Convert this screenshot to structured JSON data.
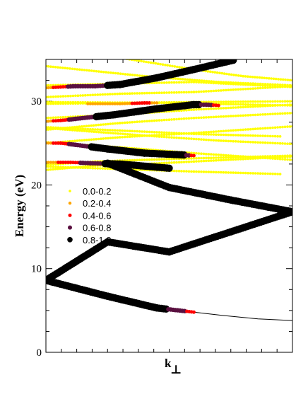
{
  "chart_data": {
    "type": "scatter",
    "title": "",
    "xlabel": "k",
    "xlabel_subscript": "⊥",
    "ylabel": "Energy (eV)",
    "xlim": [
      0,
      1
    ],
    "ylim": [
      0,
      35
    ],
    "y_ticks": [
      "0",
      "10",
      "20",
      "30"
    ],
    "y_tick_values": [
      0,
      10,
      20,
      30
    ],
    "y_minor_step": 2.5,
    "x_minor_step": 0.0625,
    "grid": false,
    "legend_position": "center-left",
    "weight_classes": [
      {
        "label": "0.0-0.2",
        "color": "#ffff00"
      },
      {
        "label": "0.2-0.4",
        "color": "#ffa500"
      },
      {
        "label": "0.4-0.6",
        "color": "#ff0000"
      },
      {
        "label": "0.6-0.8",
        "color": "#5a1040"
      },
      {
        "label": "0.8-1.0",
        "color": "#000000"
      }
    ],
    "series": [
      {
        "points": [
          [
            0,
            8.6,
            4
          ],
          [
            0.25,
            13.2,
            4
          ],
          [
            0.5,
            12.0,
            4
          ],
          [
            0.75,
            14.4,
            4
          ],
          [
            1,
            16.8,
            4
          ]
        ]
      },
      {
        "points": [
          [
            0,
            8.6,
            4
          ],
          [
            0.25,
            6.7,
            4
          ],
          [
            0.45,
            5.3,
            4
          ],
          [
            0.6,
            4.8,
            2
          ]
        ]
      },
      {
        "points": [
          [
            0.5,
            5.1,
            -1
          ],
          [
            0.6,
            4.8,
            -1
          ],
          [
            0.72,
            4.4,
            -1
          ],
          [
            0.86,
            4.0,
            -1
          ],
          [
            1.0,
            3.8,
            -1
          ]
        ]
      },
      {
        "points": [
          [
            0.0,
            8.6,
            4
          ],
          [
            0.25,
            6.7,
            4
          ],
          [
            0.45,
            5.3,
            4
          ]
        ]
      },
      {
        "points": [
          [
            0.25,
            22.6,
            4
          ],
          [
            0.5,
            19.7,
            4
          ],
          [
            0.75,
            18.2,
            4
          ],
          [
            1.0,
            16.8,
            4
          ]
        ]
      },
      {
        "points": [
          [
            0.0,
            22.7,
            1
          ],
          [
            0.1,
            22.7,
            2
          ],
          [
            0.18,
            22.6,
            3
          ],
          [
            0.3,
            22.5,
            4
          ],
          [
            0.5,
            22.0,
            4
          ]
        ]
      },
      {
        "points": [
          [
            0.0,
            25.0,
            1
          ],
          [
            0.06,
            25.0,
            2
          ],
          [
            0.12,
            24.8,
            3
          ],
          [
            0.25,
            24.3,
            4
          ],
          [
            0.4,
            23.8,
            4
          ],
          [
            0.55,
            23.6,
            4
          ],
          [
            0.6,
            23.5,
            2
          ]
        ]
      },
      {
        "points": [
          [
            0.0,
            27.6,
            1
          ],
          [
            0.06,
            27.7,
            2
          ],
          [
            0.12,
            27.9,
            3
          ],
          [
            0.28,
            28.4,
            4
          ],
          [
            0.45,
            29.1,
            4
          ],
          [
            0.6,
            29.6,
            4
          ],
          [
            0.65,
            29.6,
            3
          ],
          [
            0.7,
            29.5,
            2
          ]
        ]
      },
      {
        "points": [
          [
            0.0,
            31.6,
            1
          ],
          [
            0.06,
            31.7,
            2
          ],
          [
            0.12,
            31.8,
            3
          ],
          [
            0.2,
            31.8,
            3
          ],
          [
            0.3,
            32.0,
            4
          ],
          [
            0.45,
            32.8,
            4
          ],
          [
            0.6,
            33.8,
            4
          ],
          [
            0.76,
            34.9,
            4
          ]
        ]
      },
      {
        "points": [
          [
            0.17,
            29.7,
            1
          ],
          [
            0.3,
            29.7,
            1
          ],
          [
            0.4,
            29.8,
            2
          ],
          [
            0.45,
            29.8,
            1
          ]
        ]
      },
      {
        "points": [
          [
            0.0,
            21.8,
            0
          ],
          [
            0.2,
            22.3,
            0
          ],
          [
            0.4,
            22.5,
            0
          ],
          [
            0.6,
            22.8,
            0
          ],
          [
            0.8,
            23.1,
            0
          ],
          [
            1.0,
            23.4,
            0
          ]
        ]
      },
      {
        "points": [
          [
            0.0,
            22.2,
            0
          ],
          [
            0.3,
            21.9,
            0
          ],
          [
            0.6,
            21.6,
            0
          ],
          [
            0.95,
            21.3,
            0
          ]
        ]
      },
      {
        "points": [
          [
            0.0,
            22.4,
            0
          ],
          [
            0.2,
            22.8,
            0
          ],
          [
            0.5,
            23.1,
            0
          ],
          [
            0.75,
            23.3,
            0
          ],
          [
            1.0,
            23.5,
            0
          ]
        ]
      },
      {
        "points": [
          [
            0.0,
            25.1,
            0
          ],
          [
            0.3,
            24.5,
            0
          ],
          [
            0.6,
            23.8,
            0
          ],
          [
            0.8,
            23.4,
            0
          ],
          [
            1.0,
            23.0,
            0
          ]
        ]
      },
      {
        "points": [
          [
            0.0,
            26.8,
            0
          ],
          [
            0.4,
            25.9,
            0
          ],
          [
            0.7,
            25.3,
            0
          ],
          [
            1.0,
            24.9,
            0
          ]
        ]
      },
      {
        "points": [
          [
            0.0,
            26.9,
            0
          ],
          [
            0.3,
            26.5,
            0
          ],
          [
            0.6,
            26.1,
            0
          ],
          [
            0.95,
            25.8,
            0
          ]
        ]
      },
      {
        "points": [
          [
            0.05,
            25.1,
            0
          ],
          [
            0.3,
            25.7,
            0
          ],
          [
            0.6,
            26.2,
            0
          ],
          [
            0.85,
            26.7,
            0
          ],
          [
            1.0,
            27.0,
            0
          ]
        ]
      },
      {
        "points": [
          [
            0.0,
            26.6,
            0
          ],
          [
            0.3,
            27.4,
            0
          ],
          [
            0.6,
            28.0,
            0
          ],
          [
            1.0,
            28.6,
            0
          ]
        ]
      },
      {
        "points": [
          [
            0.0,
            28.0,
            0
          ],
          [
            0.3,
            28.4,
            0
          ],
          [
            0.6,
            29.0,
            0
          ],
          [
            1.0,
            29.6,
            0
          ]
        ]
      },
      {
        "points": [
          [
            0.0,
            29.7,
            0
          ],
          [
            0.3,
            29.8,
            0
          ],
          [
            0.6,
            29.9,
            0
          ],
          [
            1.0,
            30.0,
            0
          ]
        ]
      },
      {
        "points": [
          [
            0.0,
            29.9,
            0
          ],
          [
            0.5,
            29.8,
            0
          ],
          [
            1.0,
            29.5,
            0
          ]
        ]
      },
      {
        "points": [
          [
            0.0,
            30.5,
            0
          ],
          [
            0.3,
            30.9,
            0
          ],
          [
            0.6,
            31.1,
            0
          ],
          [
            1.0,
            31.8,
            0
          ]
        ]
      },
      {
        "points": [
          [
            0.0,
            31.9,
            0
          ],
          [
            0.3,
            32.1,
            0
          ],
          [
            0.6,
            32.3,
            0
          ],
          [
            1.0,
            31.7,
            0
          ]
        ]
      },
      {
        "points": [
          [
            0.0,
            34.2,
            0
          ],
          [
            0.4,
            33.0,
            0
          ],
          [
            0.7,
            32.3,
            0
          ],
          [
            1.0,
            31.9,
            0
          ]
        ]
      },
      {
        "points": [
          [
            0.3,
            35.2,
            0
          ],
          [
            0.6,
            33.8,
            0
          ],
          [
            0.8,
            33.0,
            0
          ],
          [
            1.0,
            32.5,
            0
          ]
        ]
      }
    ]
  }
}
